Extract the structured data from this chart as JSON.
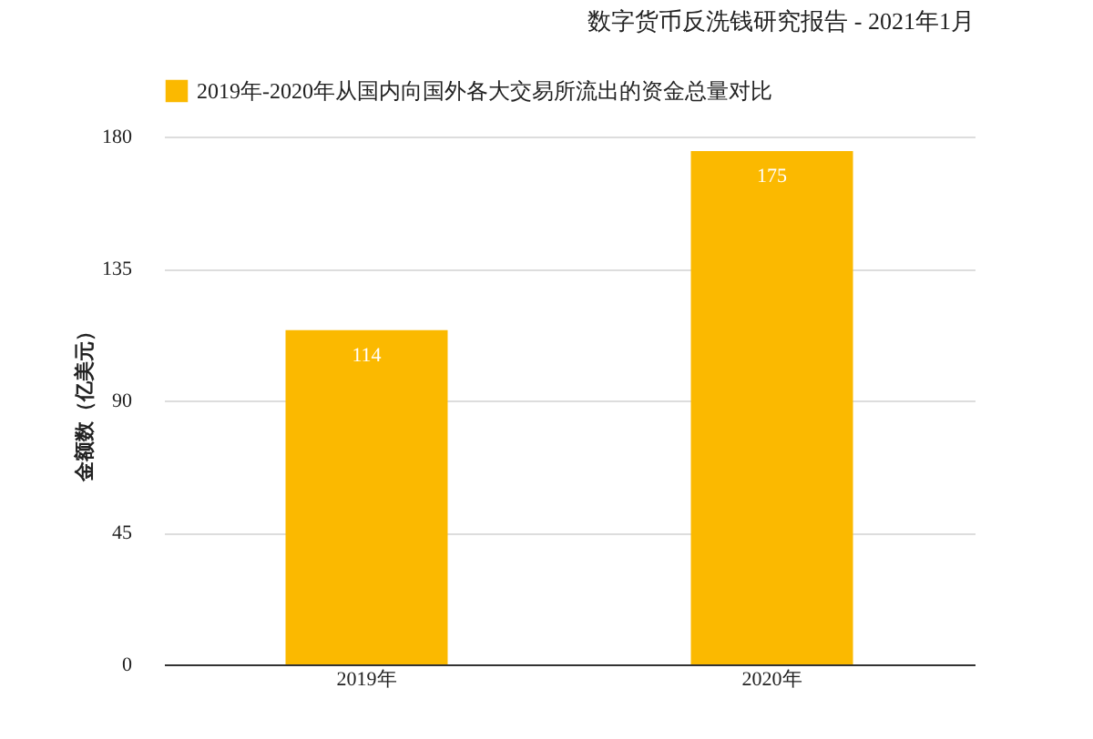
{
  "chart_data": {
    "type": "bar",
    "title": "数字货币反洗钱研究报告 - 2021年1月",
    "ylabel": "金额数（亿美元）",
    "categories": [
      "2019年",
      "2020年"
    ],
    "series": [
      {
        "name": "2019年-2020年从国内向国外各大交易所流出的资金总量对比",
        "color": "#fbb900",
        "values": [
          114,
          175
        ]
      }
    ],
    "ylim": [
      0,
      180
    ],
    "yticks": [
      0,
      45,
      90,
      135,
      180
    ],
    "grid": "y",
    "legend": "top",
    "data_labels": true
  }
}
